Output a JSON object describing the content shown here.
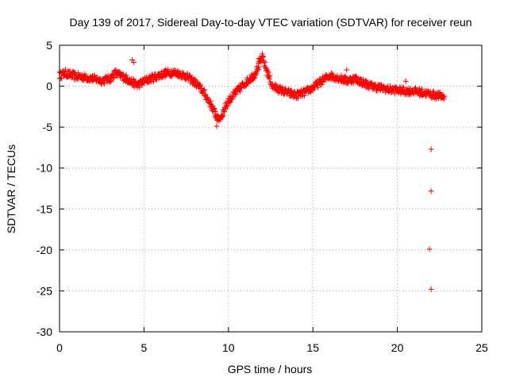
{
  "chart_data": {
    "type": "scatter",
    "title": "Day 139 of 2017, Sidereal Day-to-day VTEC variation (SDTVAR) for receiver reun",
    "xlabel": "GPS time / hours",
    "ylabel": "SDTVAR / TECUs",
    "xlim": [
      0,
      25
    ],
    "ylim": [
      -30,
      5
    ],
    "xticks": [
      0,
      5,
      10,
      15,
      20,
      25
    ],
    "yticks": [
      5,
      0,
      -5,
      -10,
      -15,
      -20,
      -25,
      -30
    ],
    "grid": true,
    "marker": "+",
    "color": "#ff0000",
    "series": [
      {
        "name": "SDTVAR",
        "trace": [
          [
            0.0,
            1.3
          ],
          [
            0.3,
            1.6
          ],
          [
            0.6,
            1.4
          ],
          [
            1.0,
            1.2
          ],
          [
            1.5,
            1.1
          ],
          [
            2.0,
            0.9
          ],
          [
            2.5,
            0.7
          ],
          [
            3.0,
            0.9
          ],
          [
            3.3,
            1.6
          ],
          [
            3.6,
            1.3
          ],
          [
            4.0,
            0.9
          ],
          [
            4.3,
            0.5
          ],
          [
            4.6,
            0.1
          ],
          [
            5.0,
            0.6
          ],
          [
            5.5,
            1.0
          ],
          [
            6.0,
            1.4
          ],
          [
            6.5,
            1.7
          ],
          [
            7.0,
            1.6
          ],
          [
            7.5,
            1.2
          ],
          [
            8.0,
            0.5
          ],
          [
            8.5,
            -0.6
          ],
          [
            9.0,
            -2.4
          ],
          [
            9.2,
            -3.3
          ],
          [
            9.4,
            -4.1
          ],
          [
            9.6,
            -3.6
          ],
          [
            9.8,
            -2.6
          ],
          [
            10.0,
            -1.8
          ],
          [
            10.4,
            -0.9
          ],
          [
            10.8,
            0.0
          ],
          [
            11.2,
            0.8
          ],
          [
            11.5,
            1.3
          ],
          [
            11.8,
            2.5
          ],
          [
            12.0,
            3.5
          ],
          [
            12.6,
            0.0
          ],
          [
            13.0,
            -0.4
          ],
          [
            13.5,
            -0.8
          ],
          [
            14.0,
            -1.1
          ],
          [
            14.5,
            -0.8
          ],
          [
            15.0,
            -0.2
          ],
          [
            15.5,
            0.6
          ],
          [
            16.0,
            1.3
          ],
          [
            16.5,
            1.0
          ],
          [
            17.0,
            0.7
          ],
          [
            17.5,
            0.9
          ],
          [
            18.0,
            0.4
          ],
          [
            18.5,
            0.0
          ],
          [
            19.0,
            -0.2
          ],
          [
            19.5,
            -0.4
          ],
          [
            20.0,
            -0.5
          ],
          [
            20.5,
            -0.6
          ],
          [
            21.0,
            -0.6
          ],
          [
            21.5,
            -0.8
          ],
          [
            22.0,
            -1.0
          ],
          [
            22.5,
            -1.2
          ],
          [
            22.8,
            -1.3
          ]
        ],
        "points": [
          [
            4.4,
            2.9
          ],
          [
            4.3,
            3.2
          ],
          [
            12.0,
            3.7
          ],
          [
            11.8,
            3.4
          ],
          [
            9.3,
            -4.9
          ],
          [
            17.0,
            2.0
          ],
          [
            20.5,
            0.6
          ],
          [
            22.0,
            -7.7
          ],
          [
            22.0,
            -12.8
          ],
          [
            21.9,
            -19.9
          ],
          [
            22.0,
            -24.8
          ]
        ]
      }
    ]
  }
}
